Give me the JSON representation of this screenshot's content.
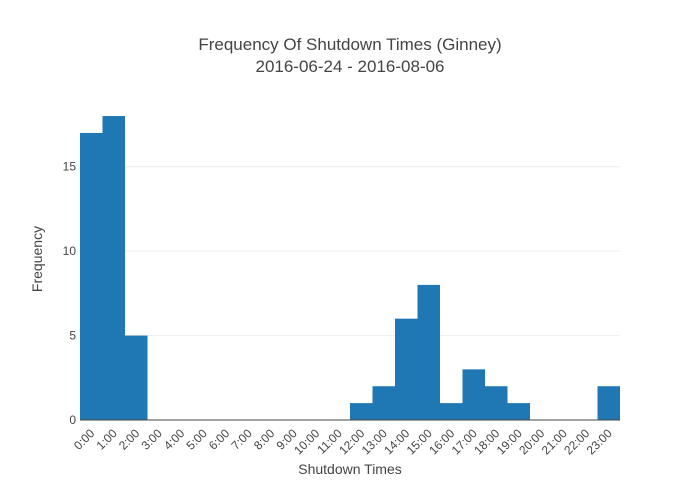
{
  "chart_data": {
    "type": "bar",
    "title": "Frequency Of Shutdown Times (Ginney)",
    "subtitle": "2016-06-24 - 2016-08-06",
    "xlabel": "Shutdown Times",
    "ylabel": "Frequency",
    "categories": [
      "0:00",
      "1:00",
      "2:00",
      "3:00",
      "4:00",
      "5:00",
      "6:00",
      "7:00",
      "8:00",
      "9:00",
      "10:00",
      "11:00",
      "12:00",
      "13:00",
      "14:00",
      "15:00",
      "16:00",
      "17:00",
      "18:00",
      "19:00",
      "20:00",
      "21:00",
      "22:00",
      "23:00"
    ],
    "values": [
      17,
      18,
      5,
      0,
      0,
      0,
      0,
      0,
      0,
      0,
      0,
      0,
      1,
      2,
      6,
      8,
      1,
      3,
      2,
      1,
      0,
      0,
      0,
      2
    ],
    "ylim": [
      0,
      18.95
    ],
    "yticks": [
      0,
      5,
      10,
      15
    ],
    "grid": true,
    "bar_color": "#1f77b4"
  }
}
